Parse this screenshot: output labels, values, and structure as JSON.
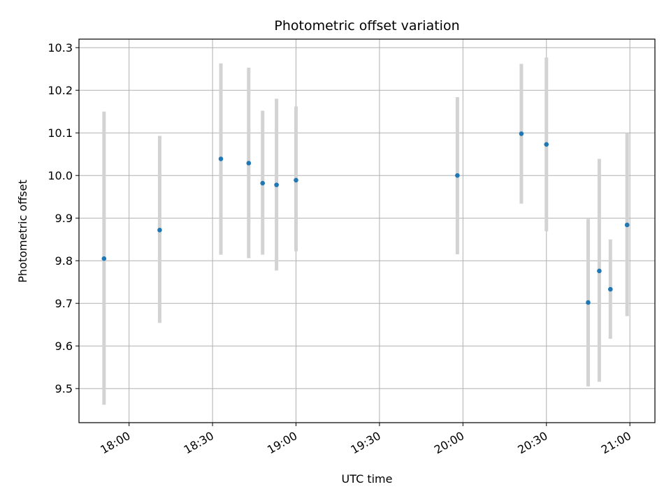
{
  "chart_data": {
    "type": "scatter",
    "title": "Photometric offset variation",
    "xlabel": "UTC time",
    "ylabel": "Photometric offset",
    "grid": true,
    "ylim": [
      9.42,
      10.32
    ],
    "xlim": [
      "17:42",
      "21:09"
    ],
    "x_ticks": [
      "18:00",
      "18:30",
      "19:00",
      "19:30",
      "20:00",
      "20:30",
      "21:00"
    ],
    "y_ticks": [
      "9.5",
      "9.6",
      "9.7",
      "9.8",
      "9.9",
      "10.0",
      "10.1",
      "10.2",
      "10.3"
    ],
    "colors": {
      "points": "#1f77b4",
      "error_bars": "#d3d3d3",
      "grid": "#b0b0b0"
    },
    "points": [
      {
        "x": "17:51",
        "y": 9.805,
        "ylow": 9.462,
        "yhigh": 10.15
      },
      {
        "x": "18:11",
        "y": 9.872,
        "ylow": 9.654,
        "yhigh": 10.093
      },
      {
        "x": "18:33",
        "y": 10.039,
        "ylow": 9.814,
        "yhigh": 10.263
      },
      {
        "x": "18:43",
        "y": 10.029,
        "ylow": 9.806,
        "yhigh": 10.253
      },
      {
        "x": "18:48",
        "y": 9.982,
        "ylow": 9.814,
        "yhigh": 10.152
      },
      {
        "x": "18:53",
        "y": 9.978,
        "ylow": 9.777,
        "yhigh": 10.18
      },
      {
        "x": "19:00",
        "y": 9.989,
        "ylow": 9.822,
        "yhigh": 10.162
      },
      {
        "x": "19:58",
        "y": 10.0,
        "ylow": 9.815,
        "yhigh": 10.184
      },
      {
        "x": "20:21",
        "y": 10.098,
        "ylow": 9.934,
        "yhigh": 10.262
      },
      {
        "x": "20:30",
        "y": 10.073,
        "ylow": 9.869,
        "yhigh": 10.277
      },
      {
        "x": "20:45",
        "y": 9.702,
        "ylow": 9.505,
        "yhigh": 9.898
      },
      {
        "x": "20:49",
        "y": 9.776,
        "ylow": 9.516,
        "yhigh": 10.039
      },
      {
        "x": "20:53",
        "y": 9.733,
        "ylow": 9.617,
        "yhigh": 9.85
      },
      {
        "x": "20:59",
        "y": 9.884,
        "ylow": 9.67,
        "yhigh": 10.1
      }
    ]
  }
}
